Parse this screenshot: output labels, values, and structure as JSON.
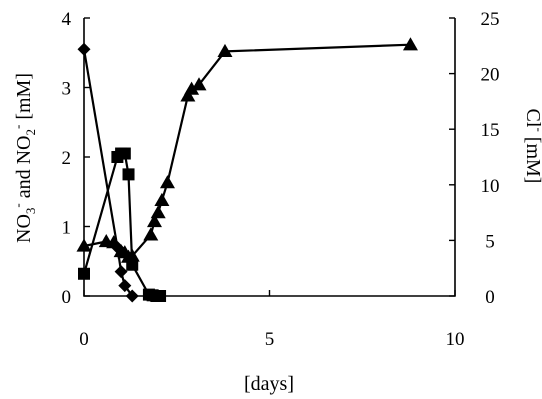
{
  "chart_data": {
    "type": "scatter",
    "xlabel": "[days]",
    "ylabel": "NO3- and NO2- [mM]",
    "ylabel_parts": {
      "no3": "NO",
      "no3_sub": "3",
      "no3_sup": "-",
      "and": " and NO",
      "no2_sub": "2",
      "no2_sup": "-",
      "unit": " [mM]"
    },
    "y2label": "Cl- [mM]",
    "y2label_parts": {
      "cl": "Cl",
      "cl_sup": "-",
      "unit": " [mM]"
    },
    "xlim": [
      0,
      10
    ],
    "ylim": [
      0,
      4
    ],
    "y2lim": [
      0,
      25
    ],
    "xticks": [
      "0",
      "5",
      "10"
    ],
    "yticks": [
      "0",
      "1",
      "2",
      "3",
      "4"
    ],
    "y2ticks": [
      "0",
      "5",
      "10",
      "15",
      "20",
      "25"
    ],
    "grid": false,
    "series": [
      {
        "marker": "diamond",
        "axis": "left",
        "x": [
          0,
          0.9,
          1.0,
          1.1,
          1.3
        ],
        "y": [
          3.55,
          0.7,
          0.35,
          0.15,
          0.0
        ]
      },
      {
        "marker": "square",
        "axis": "left",
        "x": [
          0,
          0.9,
          1.0,
          1.1,
          1.2,
          1.3,
          1.75,
          1.85,
          1.95,
          2.05
        ],
        "y": [
          0.32,
          2.0,
          2.05,
          2.05,
          1.75,
          0.45,
          0.02,
          0.01,
          0.0,
          0.0
        ]
      },
      {
        "marker": "triangle",
        "axis": "right",
        "x": [
          0,
          0.6,
          0.8,
          1.0,
          1.1,
          1.2,
          1.3,
          1.8,
          1.9,
          2.0,
          2.1,
          2.25,
          2.8,
          2.9,
          3.1,
          3.8,
          8.8
        ],
        "y": [
          4.5,
          4.9,
          4.8,
          4.0,
          3.9,
          3.5,
          3.6,
          5.5,
          6.7,
          7.5,
          8.6,
          10.2,
          18.0,
          18.6,
          19.0,
          22.0,
          22.6
        ]
      }
    ]
  }
}
